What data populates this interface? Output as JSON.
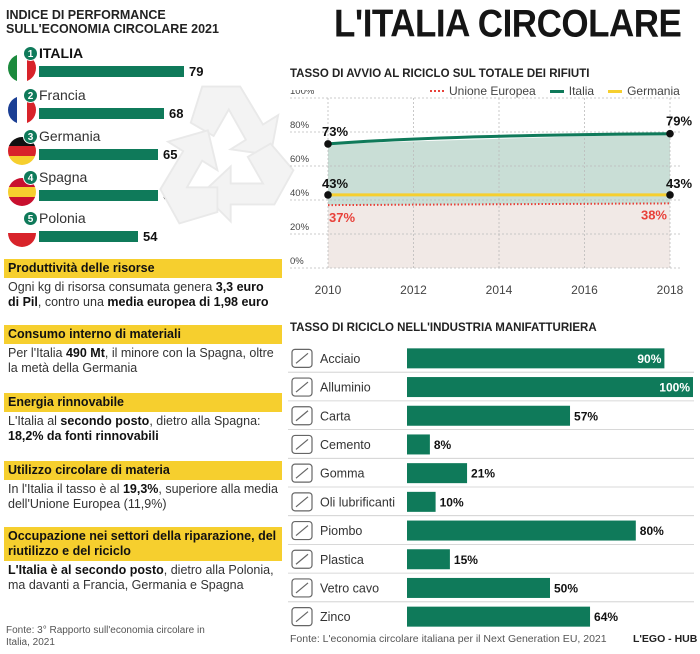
{
  "left": {
    "index_title_line1": "INDICE DI PERFORMANCE",
    "index_title_line2": "SULL'ECONOMIA CIRCOLARE 2021",
    "countries": [
      {
        "rank": "1",
        "name": "ITALIA",
        "value": 79,
        "label": "79",
        "bold": true,
        "flag": [
          "#1b8a3d",
          "#ffffff",
          "#d8232a"
        ],
        "dir": "v"
      },
      {
        "rank": "2",
        "name": "Francia",
        "value": 68,
        "label": "68",
        "bold": false,
        "flag": [
          "#1b3f94",
          "#ffffff",
          "#d8232a"
        ],
        "dir": "v"
      },
      {
        "rank": "3",
        "name": "Germania",
        "value": 65,
        "label": "65",
        "bold": false,
        "flag": [
          "#111111",
          "#d8232a",
          "#f6cf2e"
        ],
        "dir": "h"
      },
      {
        "rank": "4",
        "name": "Spagna",
        "value": 65,
        "label": "65",
        "bold": false,
        "flag": [
          "#c8102e",
          "#f6cf2e",
          "#c8102e"
        ],
        "dir": "h"
      },
      {
        "rank": "5",
        "name": "Polonia",
        "value": 54,
        "label": "54",
        "bold": false,
        "flag": [
          "#ffffff",
          "#d8232a"
        ],
        "dir": "h"
      }
    ],
    "sections": [
      {
        "title": "Produttività delle risorse",
        "text_html": "Ogni kg di risorsa consumata genera <b>3,3 euro di Pil</b>, contro una <b>media europea di 1,98 euro</b>"
      },
      {
        "title": "Consumo interno di materiali",
        "text_html": "Per l'Italia <b>490 Mt</b>, il minore con la Spagna, oltre la metà della Germania"
      },
      {
        "title": "Energia rinnovabile",
        "text_html": "L'Italia al <b>secondo posto</b>, dietro alla Spagna:<br><b>18,2% da fonti rinnovabili</b>"
      },
      {
        "title": "Utilizzo circolare di materia",
        "text_html": "In l'Italia il tasso è al <b>19,3%</b>, superiore alla media dell'Unione Europea (11,9%)"
      },
      {
        "title": "Occupazione nei settori della riparazione, del riutilizzo e del riciclo",
        "text_html": "<b>L'Italia è al secondo posto</b>, dietro alla Polonia, ma davanti a Francia, Germania e Spagna"
      }
    ],
    "source": "Fonte: 3° Rapporto sull'economia circolare in Italia, 2021"
  },
  "header": {
    "title": "L'ITALIA CIRCOLARE"
  },
  "line_chart_title": "TASSO DI AVVIO AL RICICLO SUL TOTALE DEI RIFIUTI",
  "bar_chart_title": "TASSO DI RICICLO NELL'INDUSTRIA MANIFATTURIERA",
  "legend": [
    {
      "name": "Unione Europea",
      "color": "#e8413a",
      "style": "dotted"
    },
    {
      "name": "Italia",
      "color": "#0f7a5a",
      "style": "solid"
    },
    {
      "name": "Germania",
      "color": "#f6cf2e",
      "style": "solid"
    }
  ],
  "colors": {
    "green": "#0f7a5a",
    "yellow": "#f6cf2e",
    "red": "#e8413a",
    "gray_fill": "#f1e9e6",
    "green_fill": "#c9ded6"
  },
  "chart_data": [
    {
      "type": "line",
      "title": "TASSO DI AVVIO AL RICICLO SUL TOTALE DEI RIFIUTI",
      "x": [
        2010,
        2018
      ],
      "xticks": [
        "2010",
        "2012",
        "2014",
        "2016",
        "2018"
      ],
      "yticks": [
        "0%",
        "20%",
        "40%",
        "60%",
        "80%",
        "100%"
      ],
      "ylim": [
        0,
        100
      ],
      "series": [
        {
          "name": "Italia",
          "values": [
            73,
            79
          ],
          "labels": [
            "73%",
            "79%"
          ]
        },
        {
          "name": "Germania",
          "values": [
            43,
            43
          ],
          "labels": [
            "43%",
            "43%"
          ]
        },
        {
          "name": "Unione Europea",
          "values": [
            37,
            38
          ],
          "labels": [
            "37%",
            "38%"
          ]
        }
      ],
      "legend": "top-right"
    },
    {
      "type": "bar",
      "title": "TASSO DI RICICLO NELL'INDUSTRIA MANIFATTURIERA",
      "categories": [
        "Acciaio",
        "Alluminio",
        "Carta",
        "Cemento",
        "Gomma",
        "Oli lubrificanti",
        "Piombo",
        "Plastica",
        "Vetro cavo",
        "Zinco"
      ],
      "values": [
        90,
        100,
        57,
        8,
        21,
        10,
        80,
        15,
        50,
        64
      ],
      "labels": [
        "90%",
        "100%",
        "57%",
        "8%",
        "21%",
        "10%",
        "80%",
        "15%",
        "50%",
        "64%"
      ],
      "ylim": [
        0,
        100
      ]
    }
  ],
  "footer": {
    "source": "Fonte: L'economia circolare italiana per il Next Generation EU, 2021",
    "brand": "L'EGO - HUB"
  }
}
